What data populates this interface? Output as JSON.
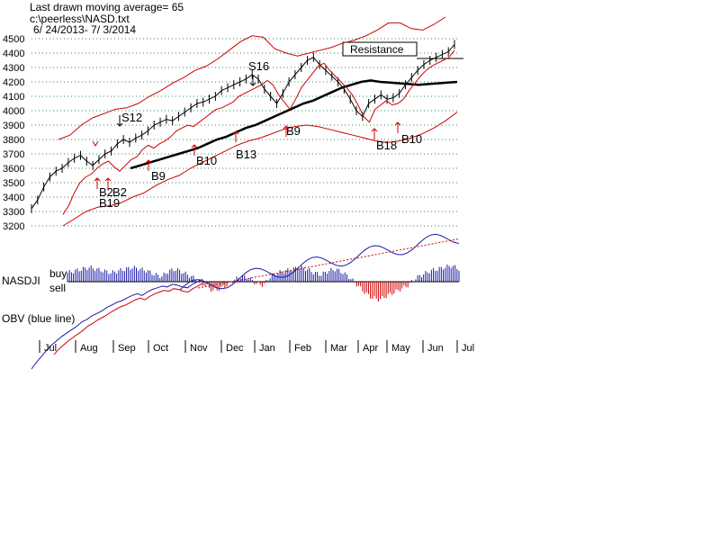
{
  "header": {
    "line1": "Last drawn moving average= 65",
    "line2": "c:\\peerless\\NASD.txt",
    "line3": "6/ 24/2013- 7/ 3/2014"
  },
  "chart_data": {
    "type": "line",
    "title": "",
    "ylim": [
      3200,
      4500
    ],
    "y_ticks": [
      "4500",
      "4400",
      "4300",
      "4200",
      "4100",
      "4000",
      "3900",
      "3800",
      "3700",
      "3600",
      "3500",
      "3400",
      "3300",
      "3200"
    ],
    "months": [
      "Jul",
      "Aug",
      "Sep",
      "Oct",
      "Nov",
      "Dec",
      "Jan",
      "Feb",
      "Mar",
      "Apr",
      "May",
      "Jun",
      "Jul"
    ],
    "resistance_label": "Resistance",
    "indicator_label": "NASDJI",
    "buy_label": "buy",
    "sell_label": "sell",
    "obv_label": "OBV (blue line)",
    "signals": [
      {
        "label": "S12",
        "type": "sell"
      },
      {
        "label": "B19",
        "type": "buy"
      },
      {
        "label": "B2",
        "type": "buy"
      },
      {
        "label": "B2",
        "type": "buy"
      },
      {
        "label": "B9",
        "type": "buy"
      },
      {
        "label": "B10",
        "type": "buy"
      },
      {
        "label": "B13",
        "type": "buy"
      },
      {
        "label": "S16",
        "type": "sell"
      },
      {
        "label": "B9",
        "type": "buy"
      },
      {
        "label": "B18",
        "type": "buy"
      },
      {
        "label": "B10",
        "type": "buy"
      }
    ],
    "price_series": {
      "name": "NASD",
      "values": [
        3320,
        3380,
        3470,
        3540,
        3580,
        3600,
        3640,
        3670,
        3690,
        3650,
        3620,
        3660,
        3700,
        3720,
        3770,
        3800,
        3780,
        3810,
        3830,
        3860,
        3900,
        3920,
        3940,
        3930,
        3960,
        3990,
        4020,
        4050,
        4060,
        4080,
        4100,
        4140,
        4160,
        4180,
        4200,
        4220,
        4250,
        4220,
        4150,
        4100,
        4050,
        4120,
        4200,
        4250,
        4300,
        4350,
        4370,
        4320,
        4280,
        4240,
        4200,
        4150,
        4080,
        4000,
        3960,
        4050,
        4080,
        4110,
        4080,
        4090,
        4120,
        4180,
        4230,
        4280,
        4320,
        4350,
        4370,
        4390,
        4410,
        4460
      ]
    },
    "ma65_values": [
      3600,
      3620,
      3640,
      3660,
      3680,
      3700,
      3720,
      3740,
      3770,
      3800,
      3820,
      3850,
      3880,
      3900,
      3930,
      3960,
      3990,
      4020,
      4050,
      4070,
      4100,
      4130,
      4160,
      4180,
      4200,
      4210,
      4200,
      4195,
      4190,
      4185,
      4180,
      4185,
      4190,
      4195,
      4200
    ],
    "upper_band_values": [
      3800,
      3830,
      3900,
      3950,
      3980,
      4010,
      4020,
      4050,
      4100,
      4140,
      4190,
      4230,
      4280,
      4310,
      4360,
      4420,
      4480,
      4520,
      4510,
      4430,
      4400,
      4380,
      4400,
      4420,
      4440,
      4470,
      4490,
      4520,
      4560,
      4610,
      4610,
      4570,
      4560,
      4600,
      4650
    ],
    "lower_band_values": [
      3200,
      3250,
      3300,
      3330,
      3340,
      3360,
      3400,
      3430,
      3480,
      3520,
      3550,
      3600,
      3640,
      3680,
      3720,
      3760,
      3790,
      3810,
      3840,
      3870,
      3890,
      3900,
      3890,
      3870,
      3850,
      3830,
      3810,
      3790,
      3780,
      3790,
      3810,
      3840,
      3880,
      3930,
      3990
    ],
    "nasdji_values": [
      0.5,
      0.6,
      0.7,
      0.8,
      0.7,
      0.6,
      0.5,
      0.6,
      0.7,
      0.8,
      0.7,
      0.6,
      0.4,
      0.3,
      0.6,
      0.7,
      0.5,
      0.3,
      0.1,
      -0.2,
      -0.5,
      -0.4,
      -0.2,
      0.1,
      0.3,
      0.2,
      -0.1,
      -0.2,
      0.3,
      0.5,
      0.6,
      0.7,
      0.8,
      0.7,
      0.5,
      0.4,
      0.6,
      0.7,
      0.5,
      0.2,
      -0.2,
      -0.6,
      -0.9,
      -1.0,
      -0.8,
      -0.6,
      -0.4,
      -0.2,
      0.2,
      0.4,
      0.6,
      0.7,
      0.8,
      0.9,
      0.7
    ],
    "obv_values": [
      0.0,
      0.08,
      0.15,
      0.22,
      0.28,
      0.33,
      0.38,
      0.42,
      0.46,
      0.5,
      0.55,
      0.58,
      0.62,
      0.65,
      0.68,
      0.72,
      0.75,
      0.78,
      0.8,
      0.83,
      0.86,
      0.88,
      0.86,
      0.9,
      0.93,
      0.95,
      0.97,
      0.96,
      0.99,
      0.98,
      0.96,
      0.95,
      0.99,
      1.02,
      1.05
    ]
  }
}
